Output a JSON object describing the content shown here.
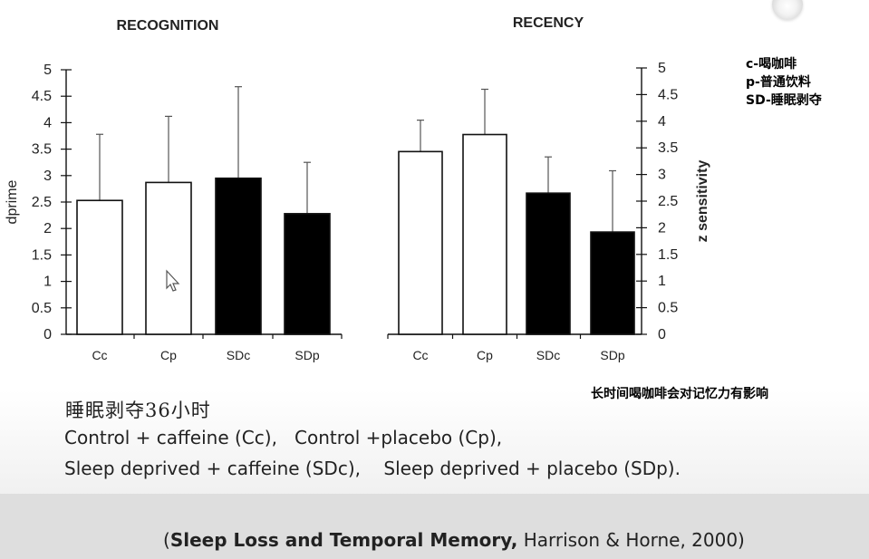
{
  "chart_data": [
    {
      "type": "bar",
      "title": "RECOGNITION",
      "ylabel": "dprime",
      "xlabel": "",
      "ylim": [
        0,
        5
      ],
      "yticks": [
        "0",
        "0.5",
        "1",
        "1.5",
        "2",
        "2.5",
        "3",
        "3.5",
        "4",
        "4.5",
        "5"
      ],
      "categories": [
        "Cc",
        "Cp",
        "SDc",
        "SDp"
      ],
      "values": [
        2.53,
        2.87,
        2.95,
        2.28
      ],
      "error_upper": [
        3.78,
        4.12,
        4.68,
        3.25
      ],
      "bar_colors": [
        "#ffffff",
        "#ffffff",
        "#000000",
        "#000000"
      ],
      "y_axis_side": "left",
      "grid": false
    },
    {
      "type": "bar",
      "title": "RECENCY",
      "ylabel": "z sensitivity",
      "xlabel": "",
      "ylim": [
        0,
        5
      ],
      "yticks": [
        "0",
        "0.5",
        "1",
        "1.5",
        "2",
        "2.5",
        "3",
        "3.5",
        "4",
        "4.5",
        "5"
      ],
      "categories": [
        "Cc",
        "Cp",
        "SDc",
        "SDp"
      ],
      "values": [
        3.43,
        3.75,
        2.65,
        1.92
      ],
      "error_upper": [
        4.02,
        4.6,
        3.33,
        3.07
      ],
      "bar_colors": [
        "#ffffff",
        "#ffffff",
        "#000000",
        "#000000"
      ],
      "y_axis_side": "right",
      "grid": false
    }
  ],
  "legend_lines": [
    "c-喝咖啡",
    "p-普通饮料",
    "SD-睡眠剥夺"
  ],
  "note": "长时间喝咖啡会对记忆力有影响",
  "handwritten_note": "睡眠剥夺36小时",
  "description_lines": [
    "Control + caffeine (Cc),   Control +placebo (Cp),",
    "Sleep deprived + caffeine (SDc),    Sleep deprived + placebo (SDp)."
  ],
  "citation": {
    "open": "(",
    "bold": "Sleep Loss and Temporal Memory,",
    "rest": " Harrison & Horne, 2000)"
  }
}
